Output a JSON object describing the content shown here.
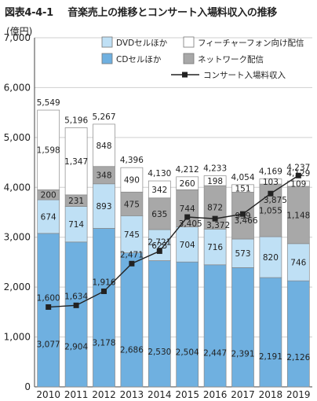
{
  "chart_data": {
    "type": "bar",
    "title_label": "図表4-4-1",
    "title": "音楽売上の推移とコンサート入場料収入の推移",
    "ylabel": "(億円)",
    "xlabel": "",
    "ylim": [
      0,
      7000
    ],
    "yticks": [
      0,
      1000,
      2000,
      3000,
      4000,
      5000,
      6000,
      7000
    ],
    "ytick_labels": [
      "0",
      "1,000",
      "2,000",
      "3,000",
      "4,000",
      "5,000",
      "6,000",
      "7,000"
    ],
    "categories": [
      "2010",
      "2011",
      "2012",
      "2013",
      "2014",
      "2015",
      "2016",
      "2017",
      "2018",
      "2019"
    ],
    "stacked": true,
    "grid": true,
    "series": [
      {
        "name": "CDセルほか",
        "color": "#6fb0e0",
        "values": [
          3077,
          2904,
          3178,
          2686,
          2530,
          2504,
          2447,
          2391,
          2191,
          2126
        ]
      },
      {
        "name": "DVDセルほか",
        "color": "#bfe0f5",
        "values": [
          674,
          714,
          893,
          745,
          623,
          704,
          716,
          573,
          820,
          746
        ]
      },
      {
        "name": "ネットワーク配信",
        "color": "#a8a8a8",
        "values": [
          200,
          231,
          348,
          475,
          635,
          744,
          872,
          939,
          1055,
          1148
        ]
      },
      {
        "name": "フィーチャーフォン向け配信",
        "color": "#ffffff",
        "values": [
          1598,
          1347,
          848,
          490,
          342,
          260,
          198,
          151,
          103,
          109
        ]
      }
    ],
    "value_labels": [
      [
        "3,077",
        "2,904",
        "3,178",
        "2,686",
        "2,530",
        "2,504",
        "2,447",
        "2,391",
        "2,191",
        "2,126"
      ],
      [
        "674",
        "714",
        "893",
        "745",
        "623",
        "704",
        "716",
        "573",
        "820",
        "746"
      ],
      [
        "200",
        "231",
        "348",
        "475",
        "635",
        "744",
        "872",
        "939",
        "1,055",
        "1,148"
      ],
      [
        "1,598",
        "1,347",
        "848",
        "490",
        "342",
        "260",
        "198",
        "151",
        "103",
        "109"
      ]
    ],
    "totals": [
      5549,
      5196,
      5267,
      4396,
      4130,
      4212,
      4233,
      4054,
      4169,
      4129
    ],
    "total_labels": [
      "5,549",
      "5,196",
      "5,267",
      "4,396",
      "4,130",
      "4,212",
      "4,233",
      "4,054",
      "4,169",
      "4,129"
    ],
    "line_series": {
      "name": "コンサート入場料収入",
      "color": "#222222",
      "values": [
        1600,
        1634,
        1916,
        2471,
        2721,
        3405,
        3372,
        3466,
        3875,
        4237
      ],
      "labels": [
        "1,600",
        "1,634",
        "1,916",
        "2,471",
        "2,721",
        "3,405",
        "3,372",
        "3,466",
        "3,875",
        "4,237"
      ]
    },
    "legend": {
      "position": "top-right",
      "order": [
        "DVDセルほか",
        "フィーチャーフォン向け配信",
        "CDセルほか",
        "ネットワーク配信",
        "コンサート入場料収入"
      ]
    }
  }
}
